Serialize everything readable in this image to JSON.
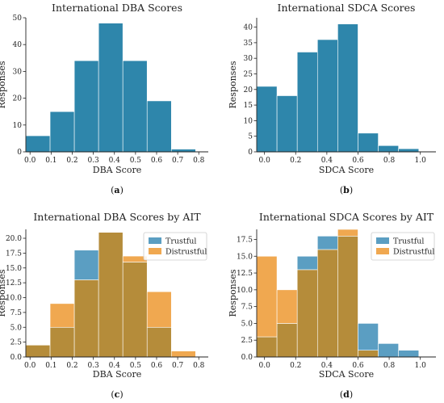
{
  "chart_data": [
    {
      "id": "a",
      "type": "bar",
      "title": "International DBA Scores",
      "xlabel": "DBA Score",
      "ylabel": "Responses",
      "caption_letter": "a",
      "xlim": [
        -0.02,
        0.845
      ],
      "ylim": [
        0,
        50
      ],
      "xticks": [
        "0.0",
        "0.1",
        "0.2",
        "0.3",
        "0.4",
        "0.5",
        "0.6",
        "0.7",
        "0.8"
      ],
      "yticks": [
        "0",
        "10",
        "20",
        "30",
        "40",
        "50"
      ],
      "bin_edges": [
        -0.02,
        0.095,
        0.21,
        0.325,
        0.44,
        0.555,
        0.67,
        0.785,
        0.845
      ],
      "series": [
        {
          "values": [
            6,
            15,
            34,
            48,
            34,
            19,
            1
          ],
          "color": "#2e86ab"
        }
      ]
    },
    {
      "id": "b",
      "type": "bar",
      "title": "International SDCA Scores",
      "xlabel": "SDCA Score",
      "ylabel": "Responses",
      "caption_letter": "b",
      "xlim": [
        -0.05,
        1.1
      ],
      "ylim": [
        0,
        43
      ],
      "xticks": [
        "0.0",
        "0.2",
        "0.4",
        "0.6",
        "0.8",
        "1.0"
      ],
      "yticks": [
        "0",
        "5",
        "10",
        "15",
        "20",
        "25",
        "30",
        "35",
        "40"
      ],
      "bin_edges": [
        -0.05,
        0.08,
        0.21,
        0.34,
        0.47,
        0.6,
        0.73,
        0.86,
        0.99,
        1.1
      ],
      "series": [
        {
          "values": [
            21,
            18,
            32,
            36,
            41,
            6,
            2,
            1
          ],
          "color": "#2e86ab"
        }
      ]
    },
    {
      "id": "c",
      "type": "bar",
      "title": "International DBA Scores by AIT",
      "xlabel": "DBA Score",
      "ylabel": "Responses",
      "caption_letter": "c",
      "xlim": [
        -0.02,
        0.845
      ],
      "ylim": [
        0,
        21.5
      ],
      "xticks": [
        "0.0",
        "0.1",
        "0.2",
        "0.3",
        "0.4",
        "0.5",
        "0.6",
        "0.7",
        "0.8"
      ],
      "yticks": [
        "0.0",
        "2.5",
        "5.0",
        "7.5",
        "10.0",
        "12.5",
        "15.0",
        "17.5",
        "20.0"
      ],
      "bin_edges": [
        -0.02,
        0.095,
        0.21,
        0.325,
        0.44,
        0.555,
        0.67,
        0.785,
        0.845
      ],
      "legend_position": "top-right",
      "series": [
        {
          "name": "Trustful",
          "values": [
            2,
            5,
            18,
            21,
            16,
            5,
            0
          ],
          "color": "#5b9ec2"
        },
        {
          "name": "Distrustful",
          "values": [
            2,
            9,
            13,
            21,
            17,
            11,
            1
          ],
          "color": "#f0a850"
        }
      ]
    },
    {
      "id": "d",
      "type": "bar",
      "title": "International SDCA Scores by AIT",
      "xlabel": "SDCA Score",
      "ylabel": "Responses",
      "caption_letter": "d",
      "xlim": [
        -0.05,
        1.1
      ],
      "ylim": [
        0,
        19
      ],
      "xticks": [
        "0.0",
        "0.2",
        "0.4",
        "0.6",
        "0.8",
        "1.0"
      ],
      "yticks": [
        "0.0",
        "2.5",
        "5.0",
        "7.5",
        "10.0",
        "12.5",
        "15.0",
        "17.5"
      ],
      "bin_edges": [
        -0.05,
        0.08,
        0.21,
        0.34,
        0.47,
        0.6,
        0.73,
        0.86,
        0.99,
        1.1
      ],
      "legend_position": "top-right",
      "series": [
        {
          "name": "Trustful",
          "values": [
            3,
            5,
            15,
            18,
            18,
            5,
            2,
            1
          ],
          "color": "#5b9ec2"
        },
        {
          "name": "Distrustful",
          "values": [
            15,
            10,
            13,
            16,
            19,
            1,
            0,
            0
          ],
          "color": "#f0a850"
        }
      ]
    }
  ],
  "colors": {
    "single": "#2e86ab",
    "trustful": "#5b9ec2",
    "distrustful": "#f0a850",
    "overlap": "#b58c3a"
  }
}
